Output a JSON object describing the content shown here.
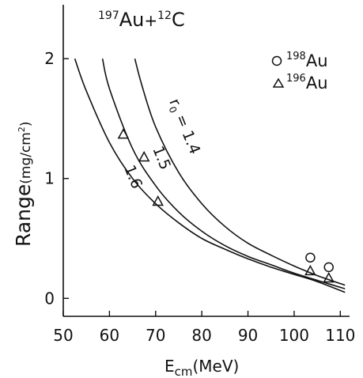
{
  "chart_data": {
    "type": "line",
    "title": {
      "pre1": "197",
      "t1": "Au",
      "plus": "+",
      "pre2": "12",
      "t2": "C"
    },
    "xlabel": {
      "main": "E",
      "sub": "cm",
      "unit": "(MeV)"
    },
    "ylabel": {
      "main": "Range",
      "unit": "(mg/cm",
      "sup": "2",
      "close": ")"
    },
    "xlim": [
      50,
      112
    ],
    "ylim": [
      -0.15,
      2.45
    ],
    "xticks": [
      50,
      60,
      70,
      80,
      90,
      100,
      110
    ],
    "yticks": [
      0,
      1,
      2
    ],
    "legend": [
      {
        "symbol": "circle",
        "mass": "198",
        "el": "Au"
      },
      {
        "symbol": "triangle",
        "mass": "196",
        "el": "Au"
      }
    ],
    "curve_labels": {
      "r0_prefix": "r",
      "r0_sub": "0",
      "r0_value": " = 1.4",
      "c2": "1.5",
      "c3": "1.6"
    },
    "series": [
      {
        "x": [
          65.5,
          67,
          70,
          75,
          80,
          85,
          90,
          95,
          100,
          105,
          111
        ],
        "y": [
          2.0,
          1.78,
          1.43,
          1.05,
          0.79,
          0.6,
          0.46,
          0.36,
          0.27,
          0.19,
          0.11
        ]
      },
      {
        "x": [
          58.5,
          60,
          65,
          70,
          75,
          80,
          85,
          90,
          95,
          100,
          105,
          111
        ],
        "y": [
          2.0,
          1.75,
          1.25,
          0.94,
          0.72,
          0.56,
          0.44,
          0.35,
          0.28,
          0.21,
          0.15,
          0.08
        ]
      },
      {
        "x": [
          52.5,
          55,
          60,
          65,
          70,
          75,
          80,
          85,
          90,
          95,
          100,
          105,
          111
        ],
        "y": [
          2.0,
          1.73,
          1.3,
          1.0,
          0.79,
          0.63,
          0.5,
          0.41,
          0.33,
          0.26,
          0.2,
          0.14,
          0.05
        ]
      }
    ],
    "points_198Au": [
      {
        "x": 103.5,
        "y": 0.34
      },
      {
        "x": 107.5,
        "y": 0.26
      }
    ],
    "points_196Au": [
      {
        "x": 63,
        "y": 1.37
      },
      {
        "x": 67.5,
        "y": 1.18
      },
      {
        "x": 70.5,
        "y": 0.81
      },
      {
        "x": 103.5,
        "y": 0.23
      },
      {
        "x": 107.5,
        "y": 0.17
      }
    ]
  }
}
